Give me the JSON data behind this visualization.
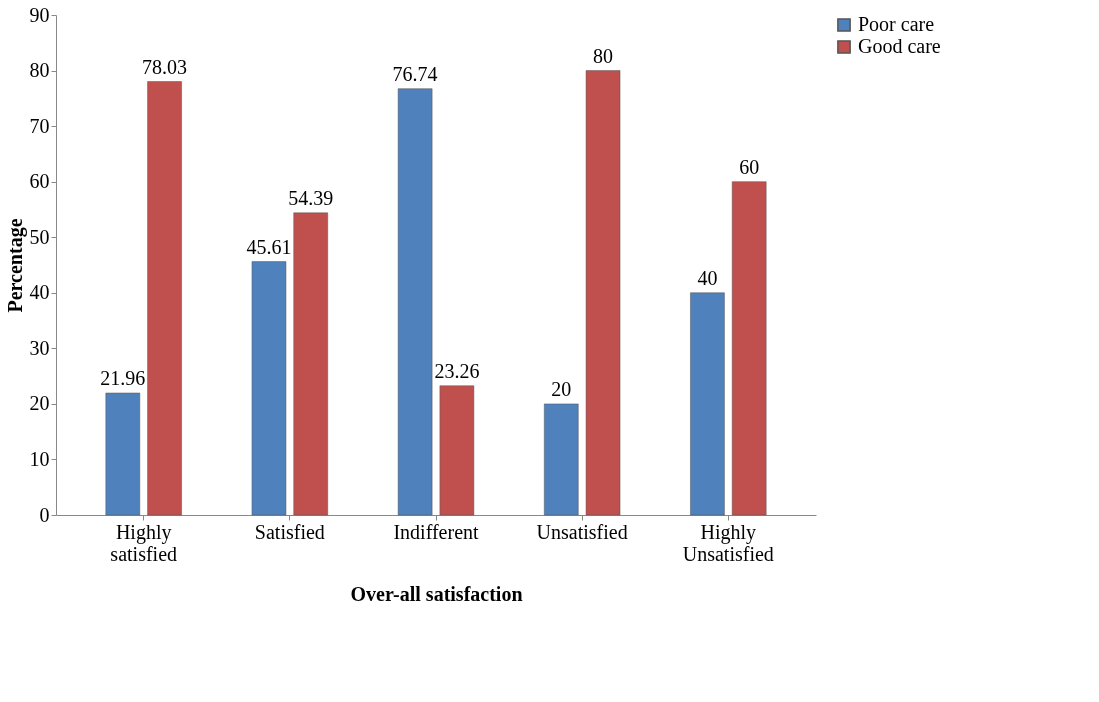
{
  "chart_data": {
    "type": "bar",
    "xlabel": "Over-all satisfaction",
    "ylabel": "Percentage",
    "categories": [
      "Highly satisfied",
      "Satisfied",
      "Indifferent",
      "Unsatisfied",
      "Highly Unsatisfied"
    ],
    "series": [
      {
        "name": "Poor care",
        "color": "#4f81bd",
        "values": [
          21.96,
          45.61,
          76.74,
          20,
          40
        ]
      },
      {
        "name": "Good care",
        "color": "#c0504d",
        "values": [
          78.03,
          54.39,
          23.26,
          80,
          60
        ]
      }
    ],
    "ylim": [
      0,
      90
    ],
    "yticks": [
      0,
      10,
      20,
      30,
      40,
      50,
      60,
      70,
      80,
      90
    ],
    "grid": false,
    "legend": "right",
    "data_labels": true
  }
}
